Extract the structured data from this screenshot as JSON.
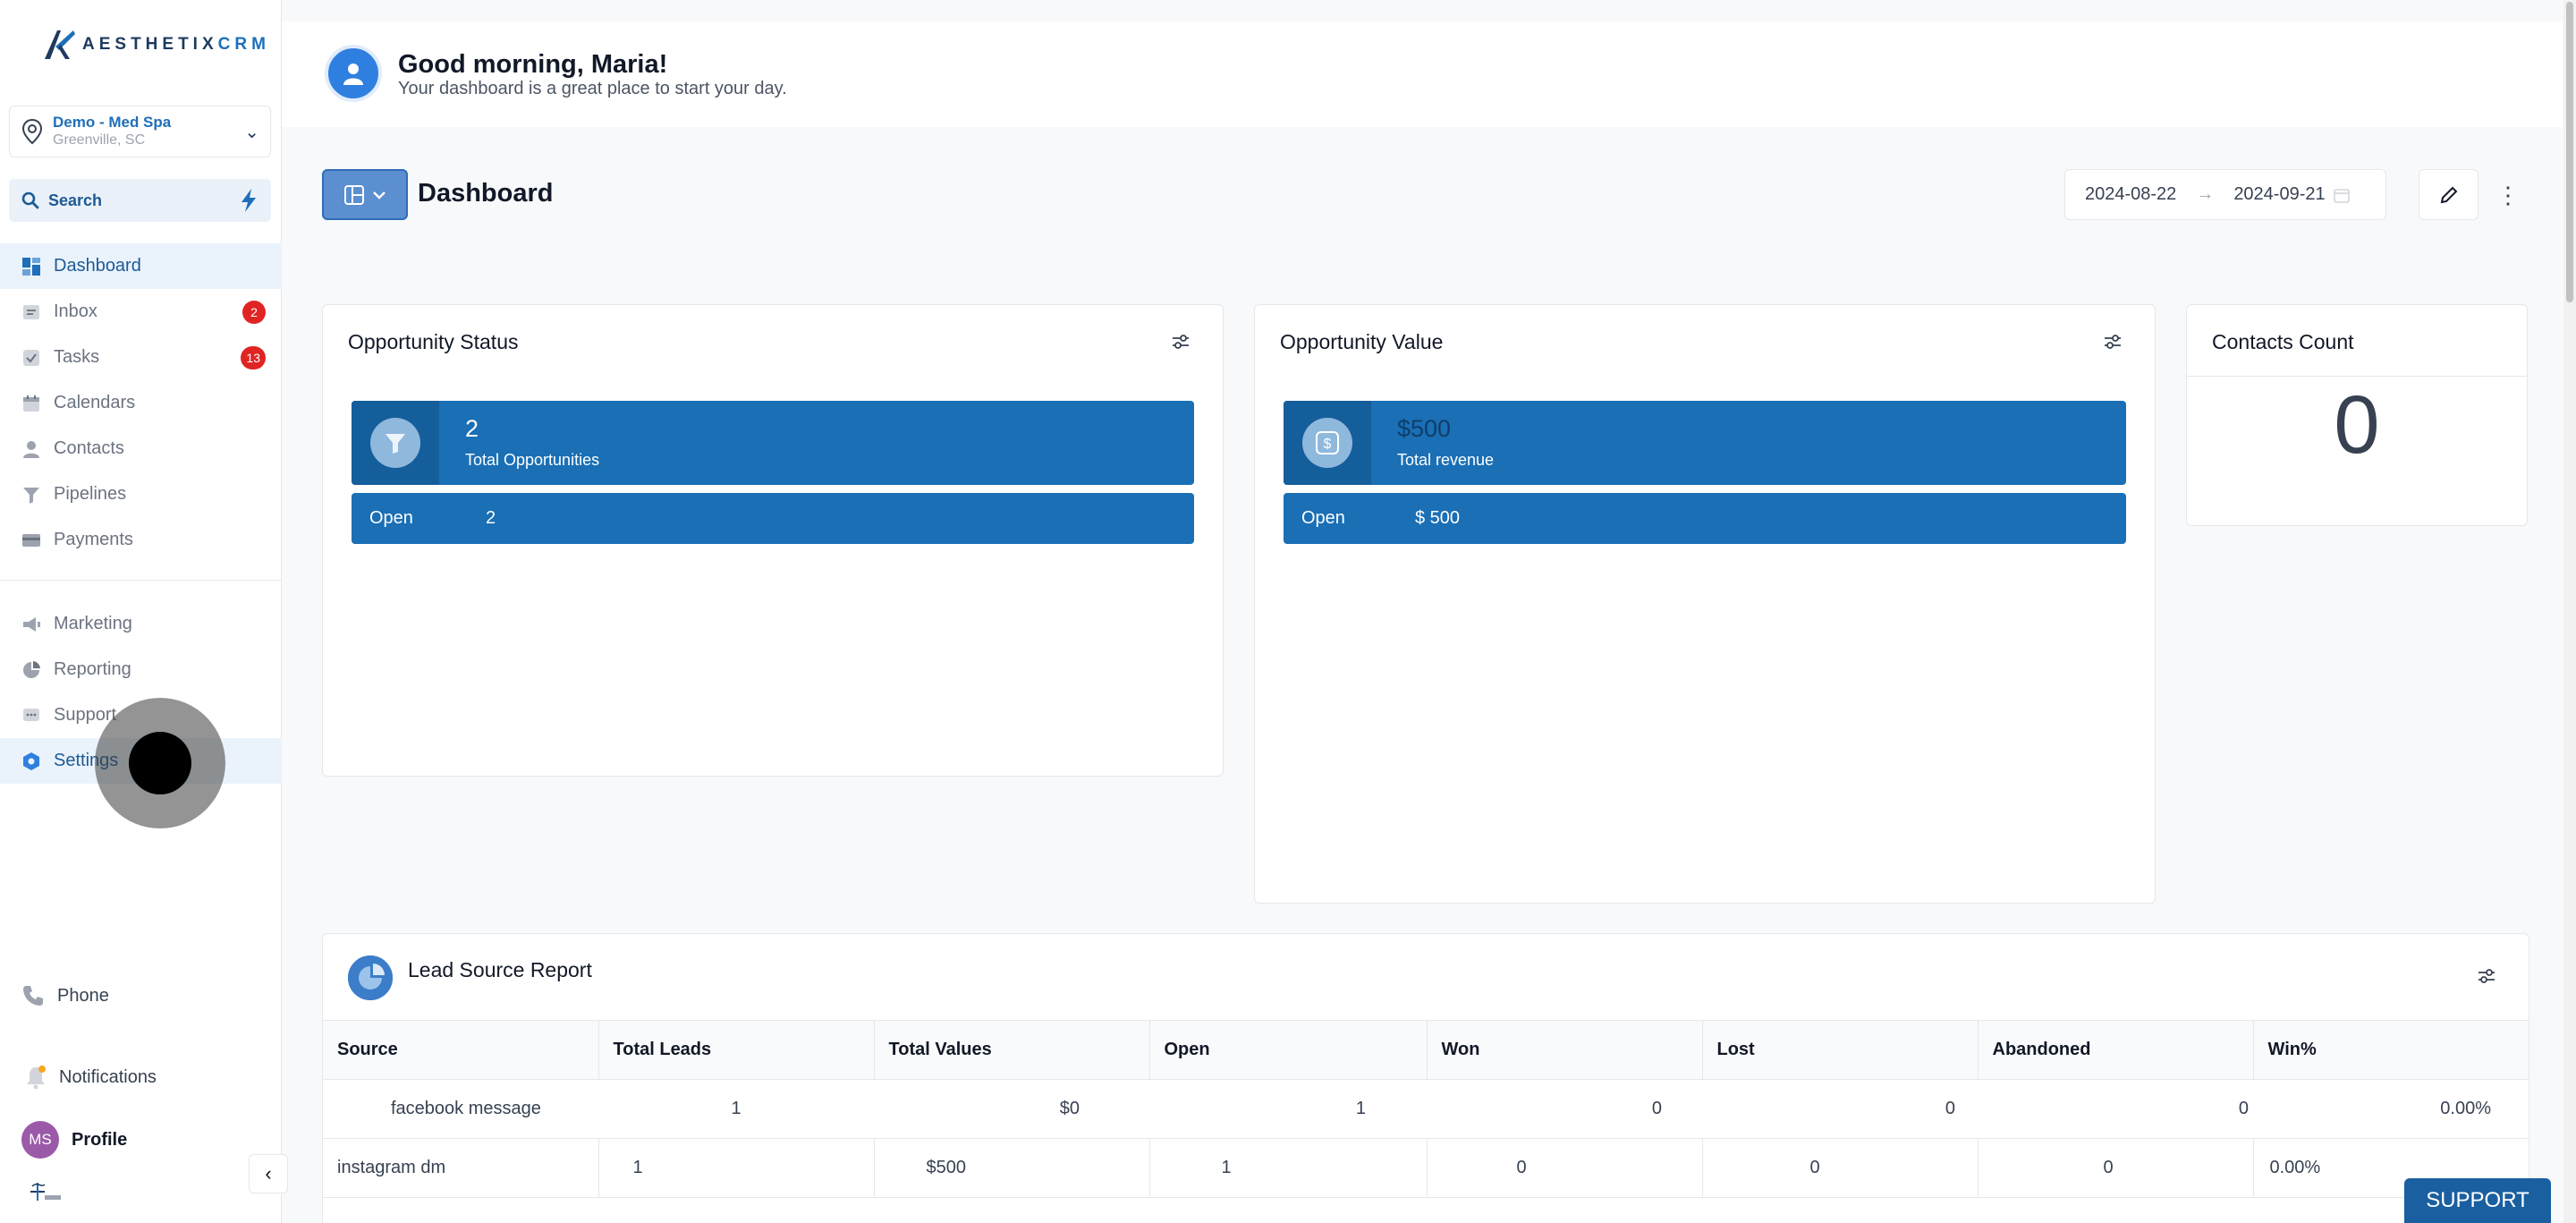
{
  "app": {
    "logo_text": "AESTHETIX",
    "logo_text_accent": "CRM"
  },
  "location": {
    "name": "Demo - Med Spa",
    "city": "Greenville, SC"
  },
  "search": {
    "label": "Search"
  },
  "nav": {
    "items": [
      {
        "label": "Dashboard",
        "icon": "dashboard-icon",
        "active": true
      },
      {
        "label": "Inbox",
        "icon": "inbox-icon",
        "badge": "2"
      },
      {
        "label": "Tasks",
        "icon": "tasks-icon",
        "badge": "13"
      },
      {
        "label": "Calendars",
        "icon": "calendar-icon"
      },
      {
        "label": "Contacts",
        "icon": "contacts-icon"
      },
      {
        "label": "Pipelines",
        "icon": "pipelines-icon"
      },
      {
        "label": "Payments",
        "icon": "payments-icon"
      }
    ],
    "secondary": [
      {
        "label": "Marketing",
        "icon": "marketing-icon"
      },
      {
        "label": "Reporting",
        "icon": "reporting-icon"
      },
      {
        "label": "Support",
        "icon": "support-icon"
      },
      {
        "label": "Settings",
        "icon": "settings-icon",
        "active": true
      }
    ],
    "bottom": {
      "phone": "Phone",
      "notifications": "Notifications",
      "profile": "Profile",
      "avatar_initials": "MS"
    }
  },
  "greeting": {
    "title": "Good morning, Maria!",
    "subtitle": "Your dashboard is a great place to start your day."
  },
  "toolbar": {
    "page_title": "Dashboard",
    "date_from": "2024-08-22",
    "date_to": "2024-09-21"
  },
  "opportunity_status": {
    "title": "Opportunity Status",
    "total_value": "2",
    "total_label": "Total Opportunities",
    "open_label": "Open",
    "open_value": "2"
  },
  "opportunity_value": {
    "title": "Opportunity Value",
    "total_value": "$500",
    "total_label": "Total revenue",
    "open_label": "Open",
    "open_value": "$ 500"
  },
  "contacts_count": {
    "title": "Contacts Count",
    "value": "0"
  },
  "lead_source": {
    "title": "Lead Source Report",
    "columns": [
      "Source",
      "Total Leads",
      "Total Values",
      "Open",
      "Won",
      "Lost",
      "Abandoned",
      "Win%"
    ],
    "rows": [
      [
        "facebook message",
        "1",
        "$0",
        "1",
        "0",
        "0",
        "0",
        "0.00%"
      ],
      [
        "instagram dm",
        "1",
        "$500",
        "1",
        "0",
        "0",
        "0",
        "0.00%"
      ]
    ]
  },
  "support_button": "SUPPORT",
  "colors": {
    "primary": "#1a6fb5",
    "badge": "#e02424",
    "active_bg": "#eaf3fb"
  }
}
